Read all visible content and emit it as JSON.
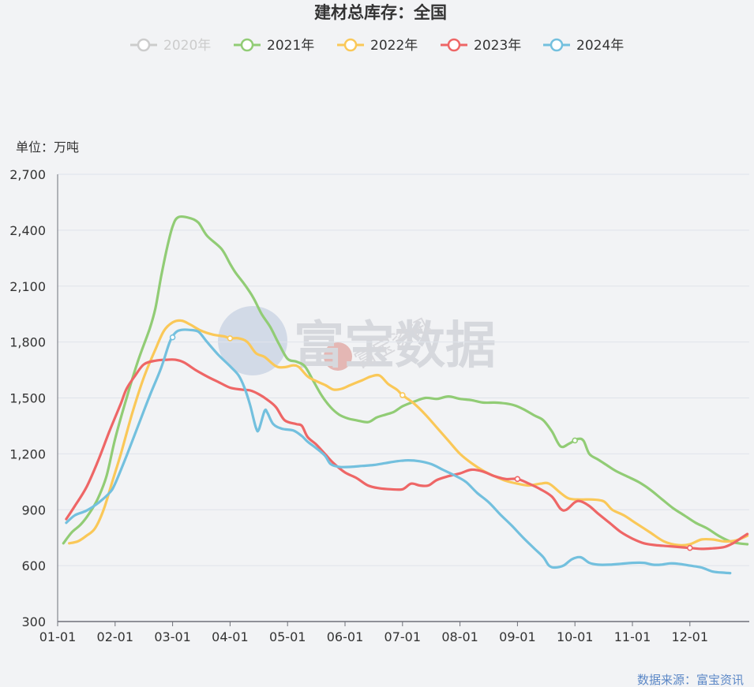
{
  "chart_data": {
    "type": "line",
    "title": "建材总库存：全国",
    "unit_label": "单位：万吨",
    "source": "数据来源：富宝资讯",
    "watermark": "富宝数据",
    "watermark_small": "富宝资讯",
    "ylim": [
      300,
      2700
    ],
    "yticks": [
      300,
      600,
      900,
      1200,
      1500,
      1800,
      2100,
      2400,
      2700
    ],
    "ytick_labels": [
      "300",
      "600",
      "900",
      "1,200",
      "1,500",
      "1,800",
      "2,100",
      "2,400",
      "2,700"
    ],
    "xlim": [
      0,
      12
    ],
    "xticks": [
      0,
      1,
      2,
      3,
      4,
      5,
      6,
      7,
      8,
      9,
      10,
      11
    ],
    "xtick_labels": [
      "01-01",
      "02-01",
      "03-01",
      "04-01",
      "05-01",
      "06-01",
      "07-01",
      "08-01",
      "09-01",
      "10-01",
      "11-01",
      "12-01"
    ],
    "grid": true,
    "legend_position": "top",
    "series": [
      {
        "name": "2020年",
        "color": "#cccccc",
        "hidden": true,
        "points": []
      },
      {
        "name": "2021年",
        "color": "#91cc75",
        "hidden": false,
        "markers": [
          9.0
        ],
        "points": [
          [
            0.1,
            720
          ],
          [
            0.25,
            780
          ],
          [
            0.4,
            820
          ],
          [
            0.55,
            880
          ],
          [
            0.7,
            960
          ],
          [
            0.85,
            1080
          ],
          [
            1.0,
            1280
          ],
          [
            1.2,
            1500
          ],
          [
            1.4,
            1700
          ],
          [
            1.6,
            1870
          ],
          [
            1.7,
            1980
          ],
          [
            1.8,
            2150
          ],
          [
            1.9,
            2300
          ],
          [
            2.0,
            2420
          ],
          [
            2.1,
            2470
          ],
          [
            2.3,
            2465
          ],
          [
            2.45,
            2440
          ],
          [
            2.6,
            2370
          ],
          [
            2.85,
            2300
          ],
          [
            3.0,
            2220
          ],
          [
            3.1,
            2170
          ],
          [
            3.25,
            2110
          ],
          [
            3.4,
            2040
          ],
          [
            3.55,
            1950
          ],
          [
            3.7,
            1880
          ],
          [
            3.85,
            1790
          ],
          [
            4.0,
            1710
          ],
          [
            4.15,
            1695
          ],
          [
            4.3,
            1670
          ],
          [
            4.45,
            1590
          ],
          [
            4.6,
            1510
          ],
          [
            4.75,
            1450
          ],
          [
            4.9,
            1410
          ],
          [
            5.05,
            1390
          ],
          [
            5.2,
            1380
          ],
          [
            5.4,
            1370
          ],
          [
            5.55,
            1395
          ],
          [
            5.7,
            1410
          ],
          [
            5.85,
            1425
          ],
          [
            6.0,
            1455
          ],
          [
            6.2,
            1480
          ],
          [
            6.4,
            1500
          ],
          [
            6.6,
            1495
          ],
          [
            6.8,
            1508
          ],
          [
            7.0,
            1495
          ],
          [
            7.2,
            1488
          ],
          [
            7.4,
            1475
          ],
          [
            7.6,
            1475
          ],
          [
            7.8,
            1470
          ],
          [
            7.95,
            1460
          ],
          [
            8.1,
            1440
          ],
          [
            8.3,
            1405
          ],
          [
            8.45,
            1380
          ],
          [
            8.6,
            1320
          ],
          [
            8.75,
            1240
          ],
          [
            8.9,
            1255
          ],
          [
            9.05,
            1280
          ],
          [
            9.15,
            1270
          ],
          [
            9.25,
            1200
          ],
          [
            9.4,
            1170
          ],
          [
            9.55,
            1140
          ],
          [
            9.7,
            1110
          ],
          [
            9.9,
            1080
          ],
          [
            10.1,
            1050
          ],
          [
            10.3,
            1010
          ],
          [
            10.5,
            960
          ],
          [
            10.7,
            910
          ],
          [
            10.9,
            870
          ],
          [
            11.1,
            830
          ],
          [
            11.3,
            800
          ],
          [
            11.5,
            760
          ],
          [
            11.7,
            730
          ],
          [
            11.85,
            720
          ],
          [
            12.0,
            715
          ]
        ]
      },
      {
        "name": "2022年",
        "color": "#fac858",
        "hidden": false,
        "markers": [
          3.0,
          6.0
        ],
        "points": [
          [
            0.2,
            720
          ],
          [
            0.35,
            730
          ],
          [
            0.5,
            760
          ],
          [
            0.65,
            800
          ],
          [
            0.8,
            900
          ],
          [
            0.95,
            1050
          ],
          [
            1.1,
            1200
          ],
          [
            1.3,
            1420
          ],
          [
            1.5,
            1610
          ],
          [
            1.7,
            1760
          ],
          [
            1.85,
            1860
          ],
          [
            2.0,
            1905
          ],
          [
            2.15,
            1915
          ],
          [
            2.3,
            1895
          ],
          [
            2.5,
            1860
          ],
          [
            2.7,
            1840
          ],
          [
            2.9,
            1830
          ],
          [
            3.0,
            1820
          ],
          [
            3.15,
            1820
          ],
          [
            3.3,
            1800
          ],
          [
            3.45,
            1740
          ],
          [
            3.6,
            1720
          ],
          [
            3.8,
            1670
          ],
          [
            3.95,
            1665
          ],
          [
            4.1,
            1675
          ],
          [
            4.2,
            1665
          ],
          [
            4.35,
            1615
          ],
          [
            4.5,
            1590
          ],
          [
            4.65,
            1570
          ],
          [
            4.8,
            1545
          ],
          [
            4.95,
            1550
          ],
          [
            5.1,
            1570
          ],
          [
            5.3,
            1595
          ],
          [
            5.45,
            1615
          ],
          [
            5.6,
            1620
          ],
          [
            5.75,
            1575
          ],
          [
            5.9,
            1545
          ],
          [
            6.0,
            1515
          ],
          [
            6.2,
            1470
          ],
          [
            6.4,
            1410
          ],
          [
            6.6,
            1340
          ],
          [
            6.8,
            1270
          ],
          [
            7.0,
            1200
          ],
          [
            7.2,
            1150
          ],
          [
            7.4,
            1110
          ],
          [
            7.6,
            1080
          ],
          [
            7.8,
            1055
          ],
          [
            8.0,
            1040
          ],
          [
            8.2,
            1030
          ],
          [
            8.4,
            1040
          ],
          [
            8.55,
            1040
          ],
          [
            8.75,
            990
          ],
          [
            8.9,
            960
          ],
          [
            9.1,
            955
          ],
          [
            9.3,
            955
          ],
          [
            9.5,
            945
          ],
          [
            9.65,
            900
          ],
          [
            9.85,
            870
          ],
          [
            10.05,
            830
          ],
          [
            10.3,
            780
          ],
          [
            10.55,
            730
          ],
          [
            10.8,
            710
          ],
          [
            11.0,
            715
          ],
          [
            11.2,
            740
          ],
          [
            11.4,
            740
          ],
          [
            11.6,
            730
          ],
          [
            11.8,
            735
          ],
          [
            12.0,
            760
          ]
        ]
      },
      {
        "name": "2023年",
        "color": "#ee6666",
        "hidden": false,
        "markers": [
          8.0,
          11.0
        ],
        "points": [
          [
            0.15,
            850
          ],
          [
            0.3,
            920
          ],
          [
            0.5,
            1020
          ],
          [
            0.7,
            1160
          ],
          [
            0.9,
            1320
          ],
          [
            1.1,
            1470
          ],
          [
            1.2,
            1550
          ],
          [
            1.35,
            1620
          ],
          [
            1.5,
            1680
          ],
          [
            1.7,
            1700
          ],
          [
            1.9,
            1705
          ],
          [
            2.05,
            1705
          ],
          [
            2.2,
            1690
          ],
          [
            2.4,
            1650
          ],
          [
            2.6,
            1615
          ],
          [
            2.8,
            1585
          ],
          [
            3.0,
            1555
          ],
          [
            3.2,
            1545
          ],
          [
            3.35,
            1540
          ],
          [
            3.5,
            1520
          ],
          [
            3.65,
            1490
          ],
          [
            3.8,
            1450
          ],
          [
            3.95,
            1380
          ],
          [
            4.15,
            1360
          ],
          [
            4.25,
            1350
          ],
          [
            4.35,
            1290
          ],
          [
            4.5,
            1250
          ],
          [
            4.65,
            1200
          ],
          [
            4.8,
            1150
          ],
          [
            5.0,
            1100
          ],
          [
            5.2,
            1070
          ],
          [
            5.4,
            1030
          ],
          [
            5.6,
            1015
          ],
          [
            5.8,
            1010
          ],
          [
            6.0,
            1010
          ],
          [
            6.15,
            1040
          ],
          [
            6.3,
            1030
          ],
          [
            6.45,
            1030
          ],
          [
            6.6,
            1060
          ],
          [
            6.8,
            1080
          ],
          [
            7.0,
            1095
          ],
          [
            7.2,
            1115
          ],
          [
            7.4,
            1105
          ],
          [
            7.6,
            1080
          ],
          [
            7.8,
            1065
          ],
          [
            8.0,
            1065
          ],
          [
            8.2,
            1040
          ],
          [
            8.4,
            1010
          ],
          [
            8.6,
            970
          ],
          [
            8.75,
            905
          ],
          [
            8.85,
            900
          ],
          [
            9.0,
            940
          ],
          [
            9.1,
            945
          ],
          [
            9.25,
            920
          ],
          [
            9.4,
            880
          ],
          [
            9.6,
            830
          ],
          [
            9.8,
            780
          ],
          [
            10.0,
            745
          ],
          [
            10.2,
            720
          ],
          [
            10.4,
            710
          ],
          [
            10.6,
            705
          ],
          [
            10.8,
            700
          ],
          [
            11.0,
            695
          ],
          [
            11.2,
            690
          ],
          [
            11.4,
            693
          ],
          [
            11.6,
            700
          ],
          [
            11.75,
            720
          ],
          [
            11.9,
            750
          ],
          [
            12.0,
            770
          ]
        ]
      },
      {
        "name": "2024年",
        "color": "#73c0de",
        "hidden": false,
        "markers": [
          2.0
        ],
        "points": [
          [
            0.15,
            830
          ],
          [
            0.3,
            870
          ],
          [
            0.5,
            895
          ],
          [
            0.7,
            935
          ],
          [
            0.9,
            990
          ],
          [
            1.0,
            1040
          ],
          [
            1.2,
            1190
          ],
          [
            1.4,
            1350
          ],
          [
            1.6,
            1510
          ],
          [
            1.8,
            1660
          ],
          [
            1.95,
            1800
          ],
          [
            2.05,
            1850
          ],
          [
            2.15,
            1865
          ],
          [
            2.3,
            1865
          ],
          [
            2.45,
            1855
          ],
          [
            2.6,
            1800
          ],
          [
            2.8,
            1730
          ],
          [
            3.0,
            1670
          ],
          [
            3.15,
            1620
          ],
          [
            3.25,
            1555
          ],
          [
            3.35,
            1460
          ],
          [
            3.45,
            1340
          ],
          [
            3.5,
            1330
          ],
          [
            3.6,
            1430
          ],
          [
            3.65,
            1420
          ],
          [
            3.75,
            1360
          ],
          [
            3.9,
            1335
          ],
          [
            4.1,
            1325
          ],
          [
            4.25,
            1295
          ],
          [
            4.35,
            1265
          ],
          [
            4.5,
            1230
          ],
          [
            4.65,
            1190
          ],
          [
            4.75,
            1145
          ],
          [
            4.9,
            1130
          ],
          [
            5.1,
            1130
          ],
          [
            5.3,
            1135
          ],
          [
            5.5,
            1140
          ],
          [
            5.7,
            1150
          ],
          [
            5.9,
            1160
          ],
          [
            6.1,
            1165
          ],
          [
            6.3,
            1160
          ],
          [
            6.5,
            1145
          ],
          [
            6.7,
            1115
          ],
          [
            6.9,
            1085
          ],
          [
            7.1,
            1050
          ],
          [
            7.3,
            990
          ],
          [
            7.5,
            940
          ],
          [
            7.7,
            875
          ],
          [
            7.9,
            815
          ],
          [
            8.1,
            750
          ],
          [
            8.3,
            690
          ],
          [
            8.45,
            645
          ],
          [
            8.55,
            600
          ],
          [
            8.65,
            590
          ],
          [
            8.8,
            600
          ],
          [
            8.95,
            635
          ],
          [
            9.1,
            645
          ],
          [
            9.25,
            615
          ],
          [
            9.4,
            605
          ],
          [
            9.6,
            605
          ],
          [
            9.8,
            610
          ],
          [
            10.0,
            615
          ],
          [
            10.2,
            615
          ],
          [
            10.35,
            605
          ],
          [
            10.5,
            605
          ],
          [
            10.65,
            612
          ],
          [
            10.8,
            610
          ],
          [
            11.0,
            600
          ],
          [
            11.2,
            590
          ],
          [
            11.4,
            568
          ],
          [
            11.6,
            562
          ],
          [
            11.7,
            560
          ]
        ]
      }
    ]
  }
}
